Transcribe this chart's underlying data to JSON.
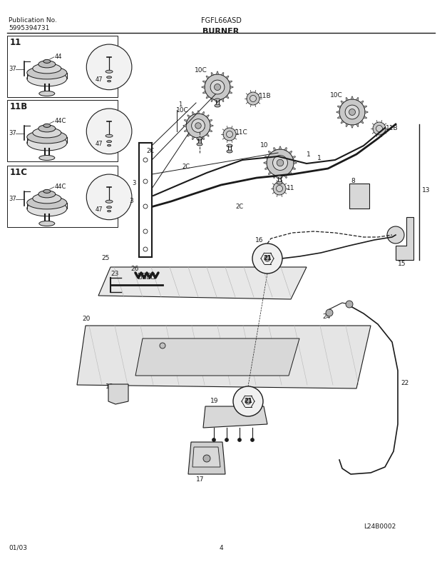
{
  "bg_color": "#ffffff",
  "dc": "#1a1a1a",
  "tc": "#1a1a1a",
  "lg": "#d8d8d8",
  "mg": "#b0b0b0",
  "pub_no_label": "Publication No.",
  "pub_no": "5995394731",
  "model": "FGFL66ASD",
  "title": "BURNER",
  "date": "01/03",
  "page": "4",
  "drawing_id": "L24B0002"
}
